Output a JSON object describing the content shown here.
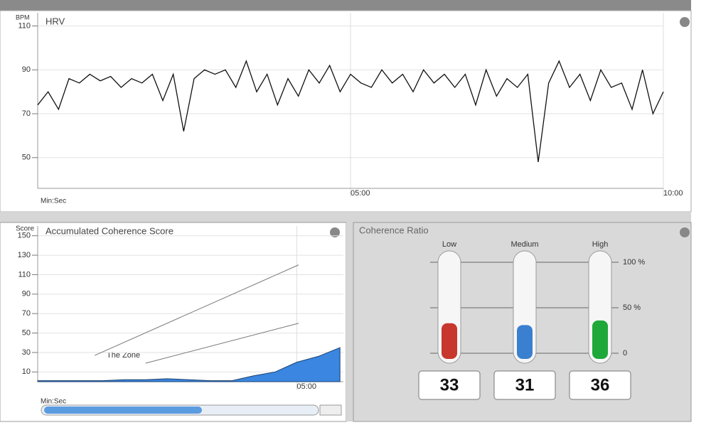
{
  "hrv": {
    "title": "HRV",
    "y_label": "BPM",
    "x_label": "Min:Sec",
    "ylim": [
      36,
      116
    ],
    "yticks": [
      50,
      70,
      90,
      110
    ],
    "xlim": [
      0,
      600
    ],
    "xticks": [
      {
        "value": 300,
        "label": "05:00"
      },
      {
        "value": 600,
        "label": "10:00"
      }
    ],
    "x": [
      0,
      10,
      20,
      30,
      40,
      50,
      60,
      70,
      80,
      90,
      100,
      110,
      120,
      130,
      140,
      150,
      160,
      170,
      180,
      190,
      200,
      210,
      220,
      230,
      240,
      250,
      260,
      270,
      280,
      290,
      300,
      310,
      320,
      330,
      340,
      350,
      360,
      370,
      380,
      390,
      400,
      410,
      420,
      430,
      440,
      450,
      460,
      470,
      480,
      490,
      500,
      510,
      520,
      530,
      540,
      550,
      560,
      570,
      580,
      590,
      600
    ],
    "values": [
      74,
      80,
      72,
      86,
      84,
      88,
      85,
      87,
      82,
      86,
      84,
      88,
      76,
      88,
      62,
      86,
      90,
      88,
      90,
      82,
      94,
      80,
      88,
      74,
      86,
      78,
      90,
      84,
      92,
      80,
      88,
      84,
      82,
      90,
      84,
      88,
      80,
      90,
      84,
      88,
      82,
      88,
      74,
      90,
      78,
      86,
      82,
      88,
      48,
      84,
      94,
      82,
      88,
      76,
      90,
      82,
      84,
      72,
      90,
      70,
      80
    ],
    "color": "#111111"
  },
  "coherence_score": {
    "title": "Accumulated Coherence Score",
    "y_label": "Score",
    "x_label": "Min:Sec",
    "ylim": [
      0,
      160
    ],
    "yticks": [
      10,
      30,
      50,
      70,
      90,
      110,
      130,
      150
    ],
    "xlim": [
      0,
      354
    ],
    "xticks": [
      {
        "value": 300,
        "label": "05:00"
      }
    ],
    "x": [
      0,
      25,
      50,
      75,
      100,
      125,
      150,
      175,
      200,
      225,
      250,
      275,
      300,
      325,
      350
    ],
    "values": [
      1,
      1,
      1,
      1,
      2,
      2,
      3,
      2,
      1,
      1,
      6,
      10,
      20,
      26,
      35
    ],
    "color": "#3a86e0",
    "zone": {
      "label": "The Zone",
      "upper": {
        "x": [
          66,
          302
        ],
        "values": [
          27,
          120
        ]
      },
      "lower": {
        "x": [
          125,
          302
        ],
        "values": [
          19,
          60
        ]
      }
    }
  },
  "coherence_ratio": {
    "title": "Coherence Ratio",
    "ylim": [
      0,
      100
    ],
    "yticks": [
      0,
      {
        "value": 50,
        "label": "50 %"
      },
      {
        "value": 100,
        "label": "100 %"
      }
    ],
    "categories": [
      "Low",
      "Medium",
      "High"
    ],
    "values": [
      33,
      31,
      36
    ],
    "colors": [
      "#c8372d",
      "#3a7fd0",
      "#1fa83a"
    ]
  }
}
